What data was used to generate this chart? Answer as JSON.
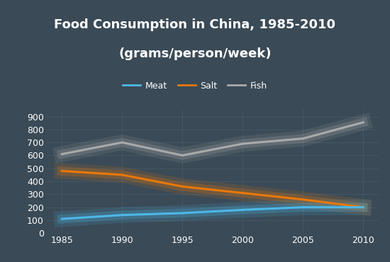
{
  "title_line1": "Food Consumption in China, 1985-2010",
  "title_line2": "(grams/person/week)",
  "x": [
    1985,
    1990,
    1995,
    2000,
    2005,
    2010
  ],
  "meat": [
    110,
    140,
    155,
    180,
    200,
    200
  ],
  "salt": [
    480,
    450,
    360,
    310,
    260,
    200
  ],
  "fish": [
    610,
    700,
    600,
    690,
    730,
    855
  ],
  "meat_color": "#4db8e8",
  "salt_color": "#e8780a",
  "fish_color": "#aaaaaa",
  "bg_color": "#3a4a56",
  "text_color": "white",
  "grid_color": "#4a5e6e",
  "ylim": [
    0,
    950
  ],
  "yticks": [
    0,
    100,
    200,
    300,
    400,
    500,
    600,
    700,
    800,
    900
  ],
  "xticks": [
    1985,
    1990,
    1995,
    2000,
    2005,
    2010
  ],
  "linewidth": 2.2,
  "legend_labels": [
    "Meat",
    "Salt",
    "Fish"
  ],
  "title_fontsize": 13,
  "tick_fontsize": 9,
  "legend_fontsize": 9
}
